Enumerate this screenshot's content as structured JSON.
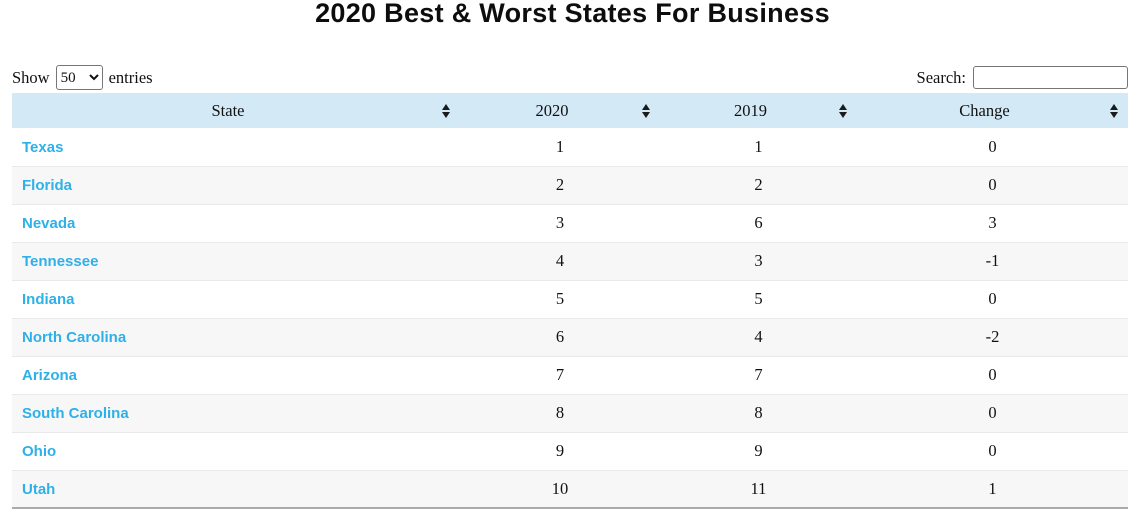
{
  "page": {
    "title": "2020 Best & Worst States For Business"
  },
  "controls": {
    "show_label": "Show",
    "entries_label": "entries",
    "page_length": "50",
    "search_label": "Search:",
    "search_value": ""
  },
  "table": {
    "columns": [
      {
        "label": "State"
      },
      {
        "label": "2020"
      },
      {
        "label": "2019"
      },
      {
        "label": "Change"
      }
    ],
    "rows": [
      {
        "state": "Texas",
        "y2020": "1",
        "y2019": "1",
        "change": "0"
      },
      {
        "state": "Florida",
        "y2020": "2",
        "y2019": "2",
        "change": "0"
      },
      {
        "state": "Nevada",
        "y2020": "3",
        "y2019": "6",
        "change": "3"
      },
      {
        "state": "Tennessee",
        "y2020": "4",
        "y2019": "3",
        "change": "-1"
      },
      {
        "state": "Indiana",
        "y2020": "5",
        "y2019": "5",
        "change": "0"
      },
      {
        "state": "North Carolina",
        "y2020": "6",
        "y2019": "4",
        "change": "-2"
      },
      {
        "state": "Arizona",
        "y2020": "7",
        "y2019": "7",
        "change": "0"
      },
      {
        "state": "South Carolina",
        "y2020": "8",
        "y2019": "8",
        "change": "0"
      },
      {
        "state": "Ohio",
        "y2020": "9",
        "y2019": "9",
        "change": "0"
      },
      {
        "state": "Utah",
        "y2020": "10",
        "y2019": "11",
        "change": "1"
      }
    ]
  },
  "colors": {
    "header_bg": "#d3e9f6",
    "link_blue": "#2eb0e8",
    "stripe_bg": "#f7f7f8"
  }
}
